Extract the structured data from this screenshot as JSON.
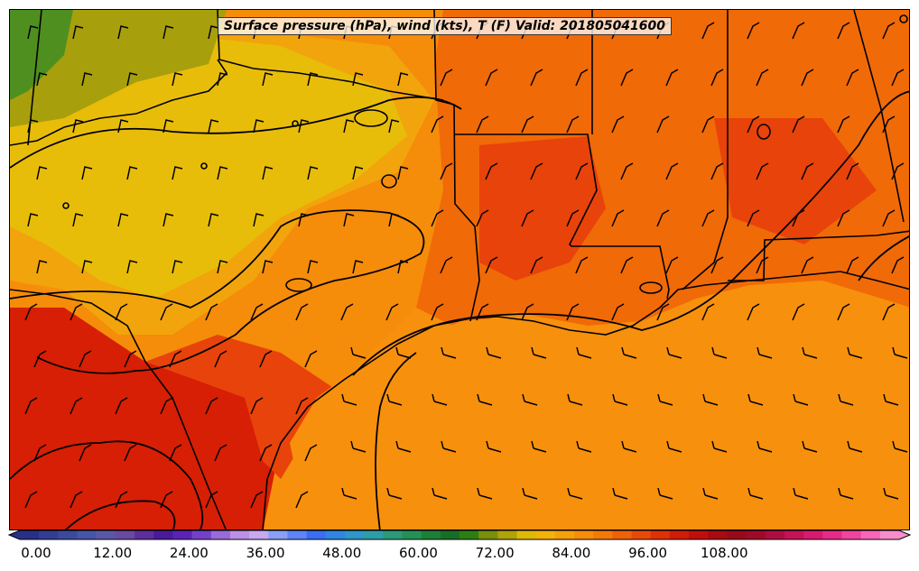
{
  "title": "Surface pressure (hPa), wind (kts), T (F) Valid: 201805041600",
  "colors": {
    "far_inland": "#4e8f1f",
    "olive": "#a89f0c",
    "yellow": "#e8bd0a",
    "light_orange": "#f2a40c",
    "orange": "#f58c0a",
    "dark_orange": "#f06a08",
    "red_orange": "#e8430a",
    "red": "#d61f05",
    "gulf": "#f7900c",
    "contour": "#000000",
    "coast": "#000000"
  },
  "colorbar": {
    "ticks": [
      "0.00",
      "12.00",
      "24.00",
      "36.00",
      "48.00",
      "60.00",
      "72.00",
      "84.00",
      "96.00",
      "108.00"
    ],
    "colors": [
      "#2a2f86",
      "#343d94",
      "#3c4a9c",
      "#4855a6",
      "#5a58a6",
      "#6a49a0",
      "#5d2e9a",
      "#4a1a9a",
      "#5b23b5",
      "#7440c8",
      "#9a6ad8",
      "#bb90e6",
      "#c8a8f0",
      "#8aa0f5",
      "#5f84f6",
      "#3a6df0",
      "#2f86e0",
      "#2e96c8",
      "#2d9ea8",
      "#2a9a78",
      "#259055",
      "#1d8037",
      "#176f25",
      "#2d7e12",
      "#7a8f0a",
      "#b0a208",
      "#e0b808",
      "#f4b20a",
      "#f6a00a",
      "#f68e0a",
      "#f47a08",
      "#ef6206",
      "#e84a06",
      "#de3205",
      "#d21c05",
      "#c00f0a",
      "#aa0a10",
      "#990a18",
      "#a00a28",
      "#b00c40",
      "#c61256",
      "#d81a6e",
      "#e62a88",
      "#f044a0",
      "#f866b8",
      "#f98ccc"
    ]
  },
  "legend": {
    "units": "T (F)"
  }
}
